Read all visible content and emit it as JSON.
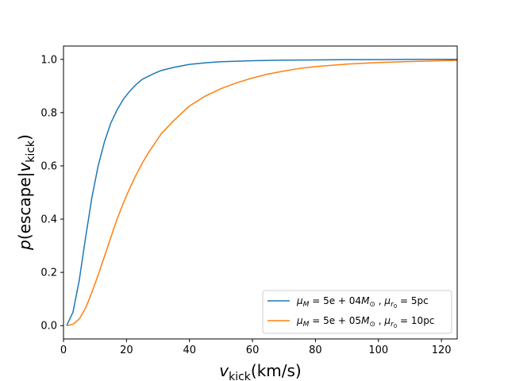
{
  "chart_data": {
    "type": "line",
    "title": "",
    "xlabel": {
      "main": "v",
      "sub": "kick",
      "unit": "(km/s)"
    },
    "ylabel": {
      "main": "p",
      "pre": "(escape|",
      "v": "v",
      "sub": "kick",
      "post": ")"
    },
    "xlim": [
      0,
      125
    ],
    "ylim": [
      -0.05,
      1.05
    ],
    "xticks": [
      0,
      20,
      40,
      60,
      80,
      100,
      120
    ],
    "yticks": [
      0.0,
      0.2,
      0.4,
      0.6,
      0.8,
      1.0
    ],
    "xtick_labels": [
      "0",
      "20",
      "40",
      "60",
      "80",
      "100",
      "120"
    ],
    "ytick_labels": [
      "0.0",
      "0.2",
      "0.4",
      "0.6",
      "0.8",
      "1.0"
    ],
    "legend_position": "lower-right",
    "series": [
      {
        "name": "μ_M = 5e+04 M_⊙, μ_r0 = 5pc",
        "legend": {
          "mu": "μ",
          "msub": "M",
          "eq": " = 5e + 04",
          "M": "M",
          "sun": "⊙",
          "comma": " , ",
          "mu2": "μ",
          "rsub": "r",
          "r0sub": "0",
          "eq2": " = 5pc"
        },
        "color": "#1f77b4",
        "x": [
          1,
          3,
          5,
          7,
          9,
          11,
          13,
          15,
          17,
          19,
          21,
          23,
          25,
          27,
          29,
          31,
          35,
          40,
          45,
          50,
          60,
          70,
          80,
          90,
          100,
          110,
          120,
          125
        ],
        "y": [
          0.0,
          0.05,
          0.17,
          0.33,
          0.48,
          0.6,
          0.69,
          0.76,
          0.81,
          0.85,
          0.88,
          0.905,
          0.925,
          0.937,
          0.948,
          0.958,
          0.97,
          0.981,
          0.987,
          0.991,
          0.995,
          0.997,
          0.998,
          0.999,
          0.999,
          1.0,
          1.0,
          1.0
        ]
      },
      {
        "name": "μ_M = 5e+05 M_⊙, μ_r0 = 10pc",
        "legend": {
          "mu": "μ",
          "msub": "M",
          "eq": " = 5e + 05",
          "M": "M",
          "sun": "⊙",
          "comma": " , ",
          "mu2": "μ",
          "rsub": "r",
          "r0sub": "0",
          "eq2": " = 10pc"
        },
        "color": "#ff7f0e",
        "x": [
          1,
          3,
          5,
          7,
          9,
          11,
          13,
          15,
          17,
          19,
          21,
          23,
          25,
          27,
          29,
          31,
          35,
          40,
          45,
          50,
          55,
          60,
          65,
          70,
          75,
          80,
          90,
          100,
          110,
          120,
          125
        ],
        "y": [
          0.0,
          0.005,
          0.025,
          0.065,
          0.125,
          0.19,
          0.26,
          0.33,
          0.4,
          0.46,
          0.515,
          0.565,
          0.61,
          0.65,
          0.685,
          0.72,
          0.77,
          0.825,
          0.862,
          0.89,
          0.912,
          0.93,
          0.945,
          0.956,
          0.966,
          0.973,
          0.982,
          0.988,
          0.992,
          0.995,
          0.996
        ]
      }
    ]
  }
}
